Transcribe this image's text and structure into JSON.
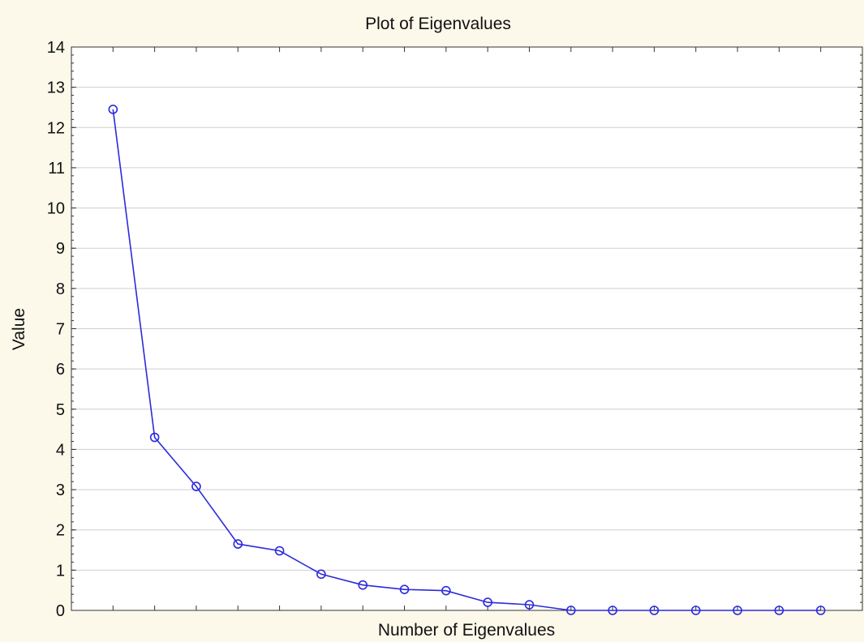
{
  "chart_data": {
    "type": "line",
    "title": "Plot of Eigenvalues",
    "xlabel": "Number of Eigenvalues",
    "ylabel": "Value",
    "x": [
      1,
      2,
      3,
      4,
      5,
      6,
      7,
      8,
      9,
      10,
      11,
      12,
      13,
      14,
      15,
      16,
      17,
      18
    ],
    "series": [
      {
        "values": [
          12.45,
          4.3,
          3.08,
          1.65,
          1.48,
          0.9,
          0.63,
          0.52,
          0.49,
          0.2,
          0.14,
          0.0,
          0.0,
          0.0,
          0.0,
          0.0,
          0.0,
          0.0
        ]
      }
    ],
    "ylim": [
      0,
      14
    ],
    "xlim": [
      0,
      19
    ],
    "yticks": [
      "0",
      "1",
      "2",
      "3",
      "4",
      "5",
      "6",
      "7",
      "8",
      "9",
      "10",
      "11",
      "12",
      "13",
      "14"
    ],
    "xtick_labels_shown": false,
    "grid": "horizontal",
    "legend": "none",
    "marker": "open-circle",
    "colors": {
      "page_background": "#fcf8ea",
      "plot_background": "#ffffff",
      "series_line": "#2b2bdc",
      "gridline": "#cfcfcf",
      "axis": "#333333"
    }
  }
}
